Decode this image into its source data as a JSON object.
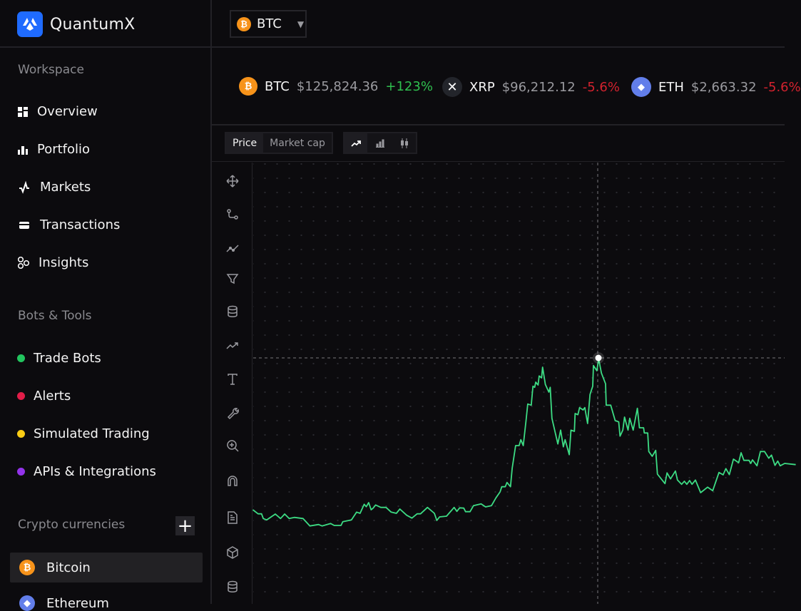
{
  "app": {
    "name": "QuantumX"
  },
  "sidebar": {
    "workspace_title": "Workspace",
    "workspace_items": [
      {
        "label": "Overview",
        "icon": "grid-icon"
      },
      {
        "label": "Portfolio",
        "icon": "bar-chart-icon"
      },
      {
        "label": "Markets",
        "icon": "pulse-icon"
      },
      {
        "label": "Transactions",
        "icon": "card-icon"
      },
      {
        "label": "Insights",
        "icon": "circles-icon"
      }
    ],
    "bots_title": "Bots & Tools",
    "bots_items": [
      {
        "label": "Trade Bots",
        "color": "#22c55e"
      },
      {
        "label": "Alerts",
        "color": "#e11d48"
      },
      {
        "label": "Simulated Trading",
        "color": "#facc15"
      },
      {
        "label": "APIs & Integrations",
        "color": "#9333ea"
      }
    ],
    "crypto_title": "Crypto currencies",
    "crypto_add": "+",
    "crypto_items": [
      {
        "label": "Bitcoin",
        "selected": true
      },
      {
        "label": "Ethereum"
      }
    ]
  },
  "header": {
    "pair": "BTC",
    "pair_icon": "bitcoin-icon"
  },
  "tickers": [
    {
      "symbol": "BTC",
      "price": "$125,824.36",
      "change": "+123%",
      "trend": "up"
    },
    {
      "symbol": "XRP",
      "price": "$96,212.12",
      "change": "-5.6%",
      "trend": "down"
    },
    {
      "symbol": "ETH",
      "price": "$2,663.32",
      "change": "-5.6%",
      "trend": "down"
    }
  ],
  "toolbar": {
    "metric_tabs": [
      "Price",
      "Market cap"
    ],
    "active_metric": "Price",
    "chart_types": [
      "line-chart-icon",
      "bar-chart-icon",
      "candlestick-icon"
    ],
    "active_chart_type": "line-chart-icon"
  },
  "drawing_tools": [
    "move-icon",
    "path-icon",
    "trendline-icon",
    "filter-icon",
    "database-icon",
    "trending-up-icon",
    "text-icon",
    "wrench-icon",
    "zoom-in-icon",
    "magnet-icon",
    "document-icon",
    "cube-icon",
    "database-icon"
  ],
  "chart": {
    "line_color": "#3ddc84"
  }
}
